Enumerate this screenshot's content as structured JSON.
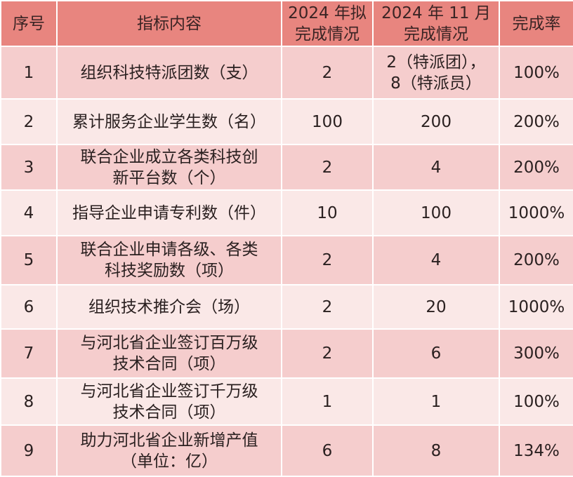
{
  "table": {
    "header": [
      "序号",
      "指标内容",
      "2024 年拟\n完成情况",
      "2024 年 11 月\n完成情况",
      "完成率"
    ],
    "rows": [
      [
        "1",
        "组织科技特派团数（支）",
        "2",
        "2（特派团），\n8（特派员）",
        "100%"
      ],
      [
        "2",
        "累计服务企业学生数（名）",
        "100",
        "200",
        "200%"
      ],
      [
        "3",
        "联合企业成立各类科技创\n新平台数（个）",
        "2",
        "4",
        "200%"
      ],
      [
        "4",
        "指导企业申请专利数（件）",
        "10",
        "100",
        "1000%"
      ],
      [
        "5",
        "联合企业申请各级、各类\n科技奖励数（项）",
        "2",
        "4",
        "200%"
      ],
      [
        "6",
        "组织技术推介会（场）",
        "2",
        "20",
        "1000%"
      ],
      [
        "7",
        "与河北省企业签订百万级\n技术合同（项）",
        "2",
        "6",
        "300%"
      ],
      [
        "8",
        "与河北省企业签订千万级\n技术合同（项）",
        "1",
        "1",
        "100%"
      ],
      [
        "9",
        "助力河北省企业新增产值\n（单位：亿）",
        "6",
        "8",
        "134%"
      ]
    ]
  }
}
